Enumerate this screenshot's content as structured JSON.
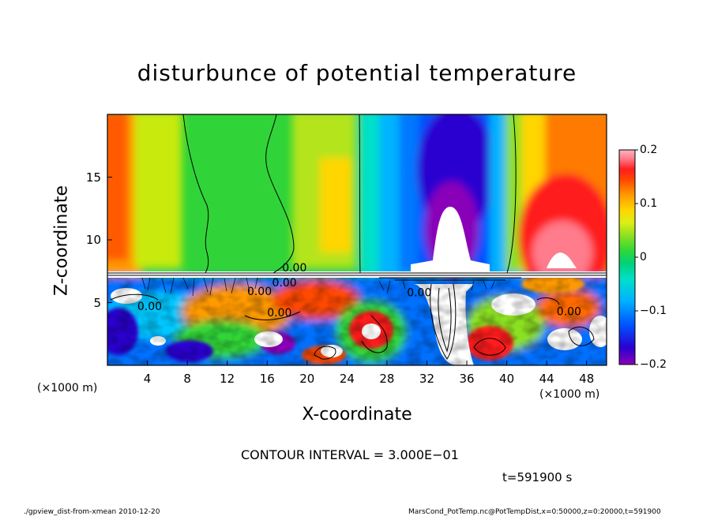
{
  "chart_data": {
    "type": "heatmap",
    "title": "disturbunce of potential temperature",
    "xlabel": "X-coordinate",
    "ylabel": "Z-coordinate",
    "x_unit_label": "(×1000 m)",
    "xlim": [
      0,
      50
    ],
    "ylim": [
      0,
      20
    ],
    "x_ticks": [
      "4",
      "8",
      "12",
      "16",
      "20",
      "24",
      "28",
      "32",
      "36",
      "40",
      "44",
      "48"
    ],
    "y_ticks": [
      "5",
      "10",
      "15"
    ],
    "colorbar": {
      "range": [
        -0.2,
        0.2
      ],
      "ticks": [
        "0.2",
        "0.1",
        "0",
        "−0.1",
        "−0.2"
      ],
      "colors": [
        "#8a00b8",
        "#2a00d0",
        "#0050ff",
        "#00b4ff",
        "#00e0c8",
        "#00d27a",
        "#2ed838",
        "#8ce020",
        "#dcee14",
        "#ffd600",
        "#ff9a00",
        "#ff4800",
        "#ff1e1e",
        "#ff7c8c",
        "#ffb4be"
      ]
    },
    "contour_labels": [
      "0.00",
      "0.00",
      "0.00",
      "0.00",
      "0.00",
      "0.00",
      "0.00"
    ],
    "contour_interval": "CONTOUR INTERVAL = 3.000E−01",
    "time": "t=591900 s",
    "footer_left": "./gpview_dist-from-xmean  2010-12-20",
    "footer_right": "MarsCond_PotTemp.nc@PotTempDist,x=0:50000,z=0:20000,t=591900"
  }
}
